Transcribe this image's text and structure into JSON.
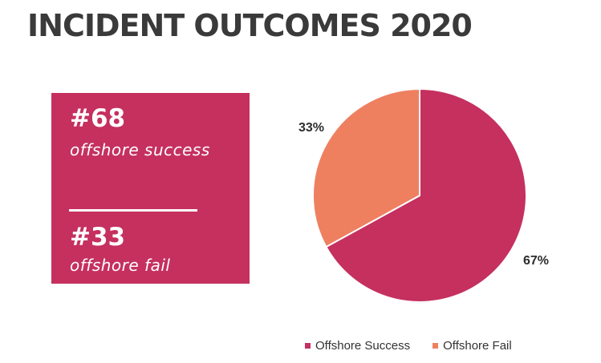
{
  "title": "INCIDENT OUTCOMES 2020",
  "stats": {
    "success_number": "#68",
    "success_label": "offshore success",
    "fail_number": "#33",
    "fail_label": "offshore fail"
  },
  "colors": {
    "success": "#c5305f",
    "fail": "#ee8060",
    "box": "#c5305f",
    "title": "#3a3a3a"
  },
  "chart_data": {
    "type": "pie",
    "slices": [
      {
        "name": "Offshore Success",
        "value": 67,
        "label": "67%",
        "color": "#c5305f"
      },
      {
        "name": "Offshore Fail",
        "value": 33,
        "label": "33%",
        "color": "#ee8060"
      }
    ],
    "legend": [
      "Offshore Success",
      "Offshore Fail"
    ],
    "legend_position": "bottom"
  }
}
